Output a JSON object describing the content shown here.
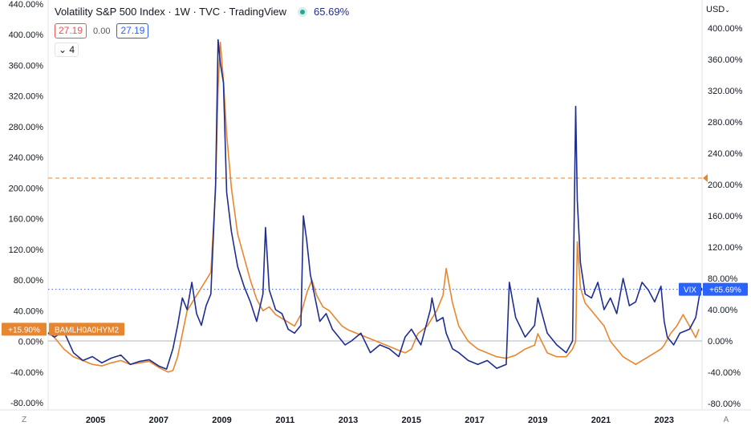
{
  "header": {
    "title": "Volatility S&P 500 Index · 1W · TVC · TradingView",
    "change_pct": "65.69%",
    "ohlc_left": "27.19",
    "ohlc_mid": "0.00",
    "ohlc_right": "27.19",
    "indicator_count": "4",
    "currency": "USD",
    "collapse_icon": "chevron-down-icon",
    "status_icon": "live-dot-icon",
    "currency_icon": "chevron-down-icon"
  },
  "footer": {
    "left_corner": "Z",
    "right_corner": "A"
  },
  "colors": {
    "vix": "#1e2d8f",
    "bamlh": "#e8862f",
    "vix_label": "#2962ff",
    "bamlh_label": "#e8862f",
    "grid": "#ffffff",
    "axis_text": "#131722"
  },
  "chart_data": {
    "type": "line",
    "title": "Volatility S&P 500 Index · 1W · TVC · TradingView",
    "xlabel": "",
    "ylabel": "",
    "x_range": [
      2003.5,
      2024.2
    ],
    "ylim": [
      -85,
      445
    ],
    "left_axis_ticks": [
      "440.00%",
      "400.00%",
      "360.00%",
      "320.00%",
      "280.00%",
      "240.00%",
      "200.00%",
      "160.00%",
      "120.00%",
      "80.00%",
      "40.00%",
      "0.00%",
      "-40.00%",
      "-80.00%"
    ],
    "left_axis_values": [
      440,
      400,
      360,
      320,
      280,
      240,
      200,
      160,
      120,
      80,
      40,
      0,
      -40,
      -80
    ],
    "right_axis_ticks": [
      "400.00%",
      "360.00%",
      "320.00%",
      "280.00%",
      "240.00%",
      "200.00%",
      "160.00%",
      "120.00%",
      "80.00%",
      "40.00%",
      "0.00%",
      "-40.00%",
      "-80.00%"
    ],
    "right_axis_values": [
      400,
      360,
      320,
      280,
      240,
      200,
      160,
      120,
      80,
      40,
      0,
      -40,
      -80
    ],
    "x_ticks": [
      "2005",
      "2007",
      "2009",
      "2011",
      "2013",
      "2015",
      "2017",
      "2019",
      "2021",
      "2023"
    ],
    "x_tick_values": [
      2005,
      2007,
      2009,
      2011,
      2013,
      2015,
      2017,
      2019,
      2021,
      2023
    ],
    "zero_line": 0,
    "series": [
      {
        "name": "VIX",
        "label": "VIX",
        "last_value_label": "+65.69%",
        "last_value": 66,
        "axis": "right",
        "x": [
          2003.5,
          2003.7,
          2004.0,
          2004.3,
          2004.6,
          2004.9,
          2005.2,
          2005.5,
          2005.8,
          2006.1,
          2006.4,
          2006.7,
          2007.0,
          2007.25,
          2007.45,
          2007.6,
          2007.75,
          2007.9,
          2008.05,
          2008.2,
          2008.35,
          2008.5,
          2008.65,
          2008.8,
          2008.88,
          2008.95,
          2009.05,
          2009.15,
          2009.3,
          2009.5,
          2009.7,
          2009.9,
          2010.1,
          2010.3,
          2010.38,
          2010.5,
          2010.7,
          2010.9,
          2011.1,
          2011.3,
          2011.5,
          2011.58,
          2011.68,
          2011.8,
          2011.95,
          2012.1,
          2012.3,
          2012.5,
          2012.7,
          2012.9,
          2013.1,
          2013.4,
          2013.7,
          2014.0,
          2014.3,
          2014.6,
          2014.8,
          2015.0,
          2015.3,
          2015.6,
          2015.65,
          2015.8,
          2016.0,
          2016.1,
          2016.3,
          2016.5,
          2016.8,
          2017.1,
          2017.4,
          2017.7,
          2018.0,
          2018.1,
          2018.3,
          2018.6,
          2018.9,
          2019.0,
          2019.3,
          2019.6,
          2019.9,
          2020.1,
          2020.2,
          2020.25,
          2020.35,
          2020.5,
          2020.7,
          2020.9,
          2021.1,
          2021.3,
          2021.5,
          2021.7,
          2021.9,
          2022.1,
          2022.3,
          2022.5,
          2022.7,
          2022.9,
          2023.0,
          2023.1,
          2023.3,
          2023.5,
          2023.8,
          2024.0,
          2024.15
        ],
        "y": [
          10,
          5,
          12,
          -15,
          -25,
          -20,
          -28,
          -22,
          -18,
          -30,
          -26,
          -24,
          -32,
          -36,
          -10,
          20,
          55,
          40,
          75,
          35,
          20,
          45,
          60,
          200,
          385,
          355,
          330,
          190,
          140,
          95,
          70,
          50,
          25,
          60,
          145,
          65,
          40,
          35,
          15,
          10,
          20,
          160,
          130,
          85,
          55,
          25,
          35,
          15,
          5,
          -5,
          0,
          10,
          -15,
          -5,
          -10,
          -20,
          5,
          15,
          -5,
          40,
          55,
          25,
          30,
          10,
          -10,
          -15,
          -25,
          -30,
          -25,
          -35,
          -30,
          75,
          30,
          5,
          20,
          55,
          10,
          -5,
          -15,
          0,
          300,
          180,
          100,
          60,
          55,
          75,
          40,
          55,
          35,
          80,
          45,
          50,
          75,
          65,
          50,
          70,
          25,
          5,
          -5,
          10,
          15,
          30,
          66
        ]
      },
      {
        "name": "BAMLH0A0HYM2",
        "label": "BAMLH0A0HYM2",
        "last_value_label": "+15.90%",
        "last_value": 15.9,
        "axis": "left",
        "x": [
          2003.5,
          2003.7,
          2004.0,
          2004.3,
          2004.6,
          2004.9,
          2005.2,
          2005.5,
          2005.8,
          2006.1,
          2006.4,
          2006.7,
          2007.0,
          2007.3,
          2007.45,
          2007.6,
          2007.75,
          2007.9,
          2008.05,
          2008.2,
          2008.35,
          2008.5,
          2008.65,
          2008.8,
          2008.88,
          2008.95,
          2009.05,
          2009.15,
          2009.3,
          2009.5,
          2009.7,
          2009.9,
          2010.1,
          2010.3,
          2010.5,
          2010.7,
          2010.9,
          2011.1,
          2011.3,
          2011.5,
          2011.7,
          2011.85,
          2012.0,
          2012.2,
          2012.4,
          2012.6,
          2012.8,
          2013.0,
          2013.3,
          2013.6,
          2013.9,
          2014.2,
          2014.5,
          2014.8,
          2015.0,
          2015.2,
          2015.5,
          2015.8,
          2016.0,
          2016.1,
          2016.3,
          2016.5,
          2016.8,
          2017.1,
          2017.4,
          2017.7,
          2018.0,
          2018.3,
          2018.6,
          2018.9,
          2019.0,
          2019.3,
          2019.6,
          2019.9,
          2020.1,
          2020.2,
          2020.25,
          2020.35,
          2020.5,
          2020.7,
          2020.9,
          2021.1,
          2021.3,
          2021.5,
          2021.7,
          2021.9,
          2022.1,
          2022.3,
          2022.5,
          2022.7,
          2022.9,
          2023.0,
          2023.2,
          2023.4,
          2023.6,
          2023.8,
          2024.0,
          2024.1
        ],
        "y": [
          12,
          5,
          -10,
          -20,
          -25,
          -30,
          -32,
          -28,
          -25,
          -30,
          -28,
          -26,
          -34,
          -40,
          -38,
          -20,
          10,
          40,
          50,
          60,
          70,
          80,
          90,
          200,
          330,
          390,
          340,
          270,
          200,
          140,
          110,
          80,
          55,
          40,
          45,
          35,
          30,
          25,
          20,
          35,
          65,
          80,
          60,
          45,
          40,
          30,
          20,
          15,
          10,
          5,
          0,
          -5,
          -10,
          -15,
          -10,
          10,
          20,
          40,
          60,
          95,
          50,
          20,
          0,
          -10,
          -15,
          -20,
          -22,
          -18,
          -10,
          -5,
          10,
          -15,
          -20,
          -20,
          -10,
          0,
          130,
          70,
          50,
          40,
          30,
          20,
          0,
          -10,
          -20,
          -25,
          -30,
          -25,
          -20,
          -15,
          -10,
          -5,
          10,
          20,
          35,
          20,
          5,
          15.9
        ]
      }
    ],
    "reference_lines": [
      {
        "axis": "left",
        "value": 213,
        "style": "dashed",
        "color": "#e8862f"
      },
      {
        "axis": "right",
        "value": 66,
        "style": "dotted",
        "color": "#2962ff"
      }
    ],
    "legend": "none",
    "grid": false
  }
}
